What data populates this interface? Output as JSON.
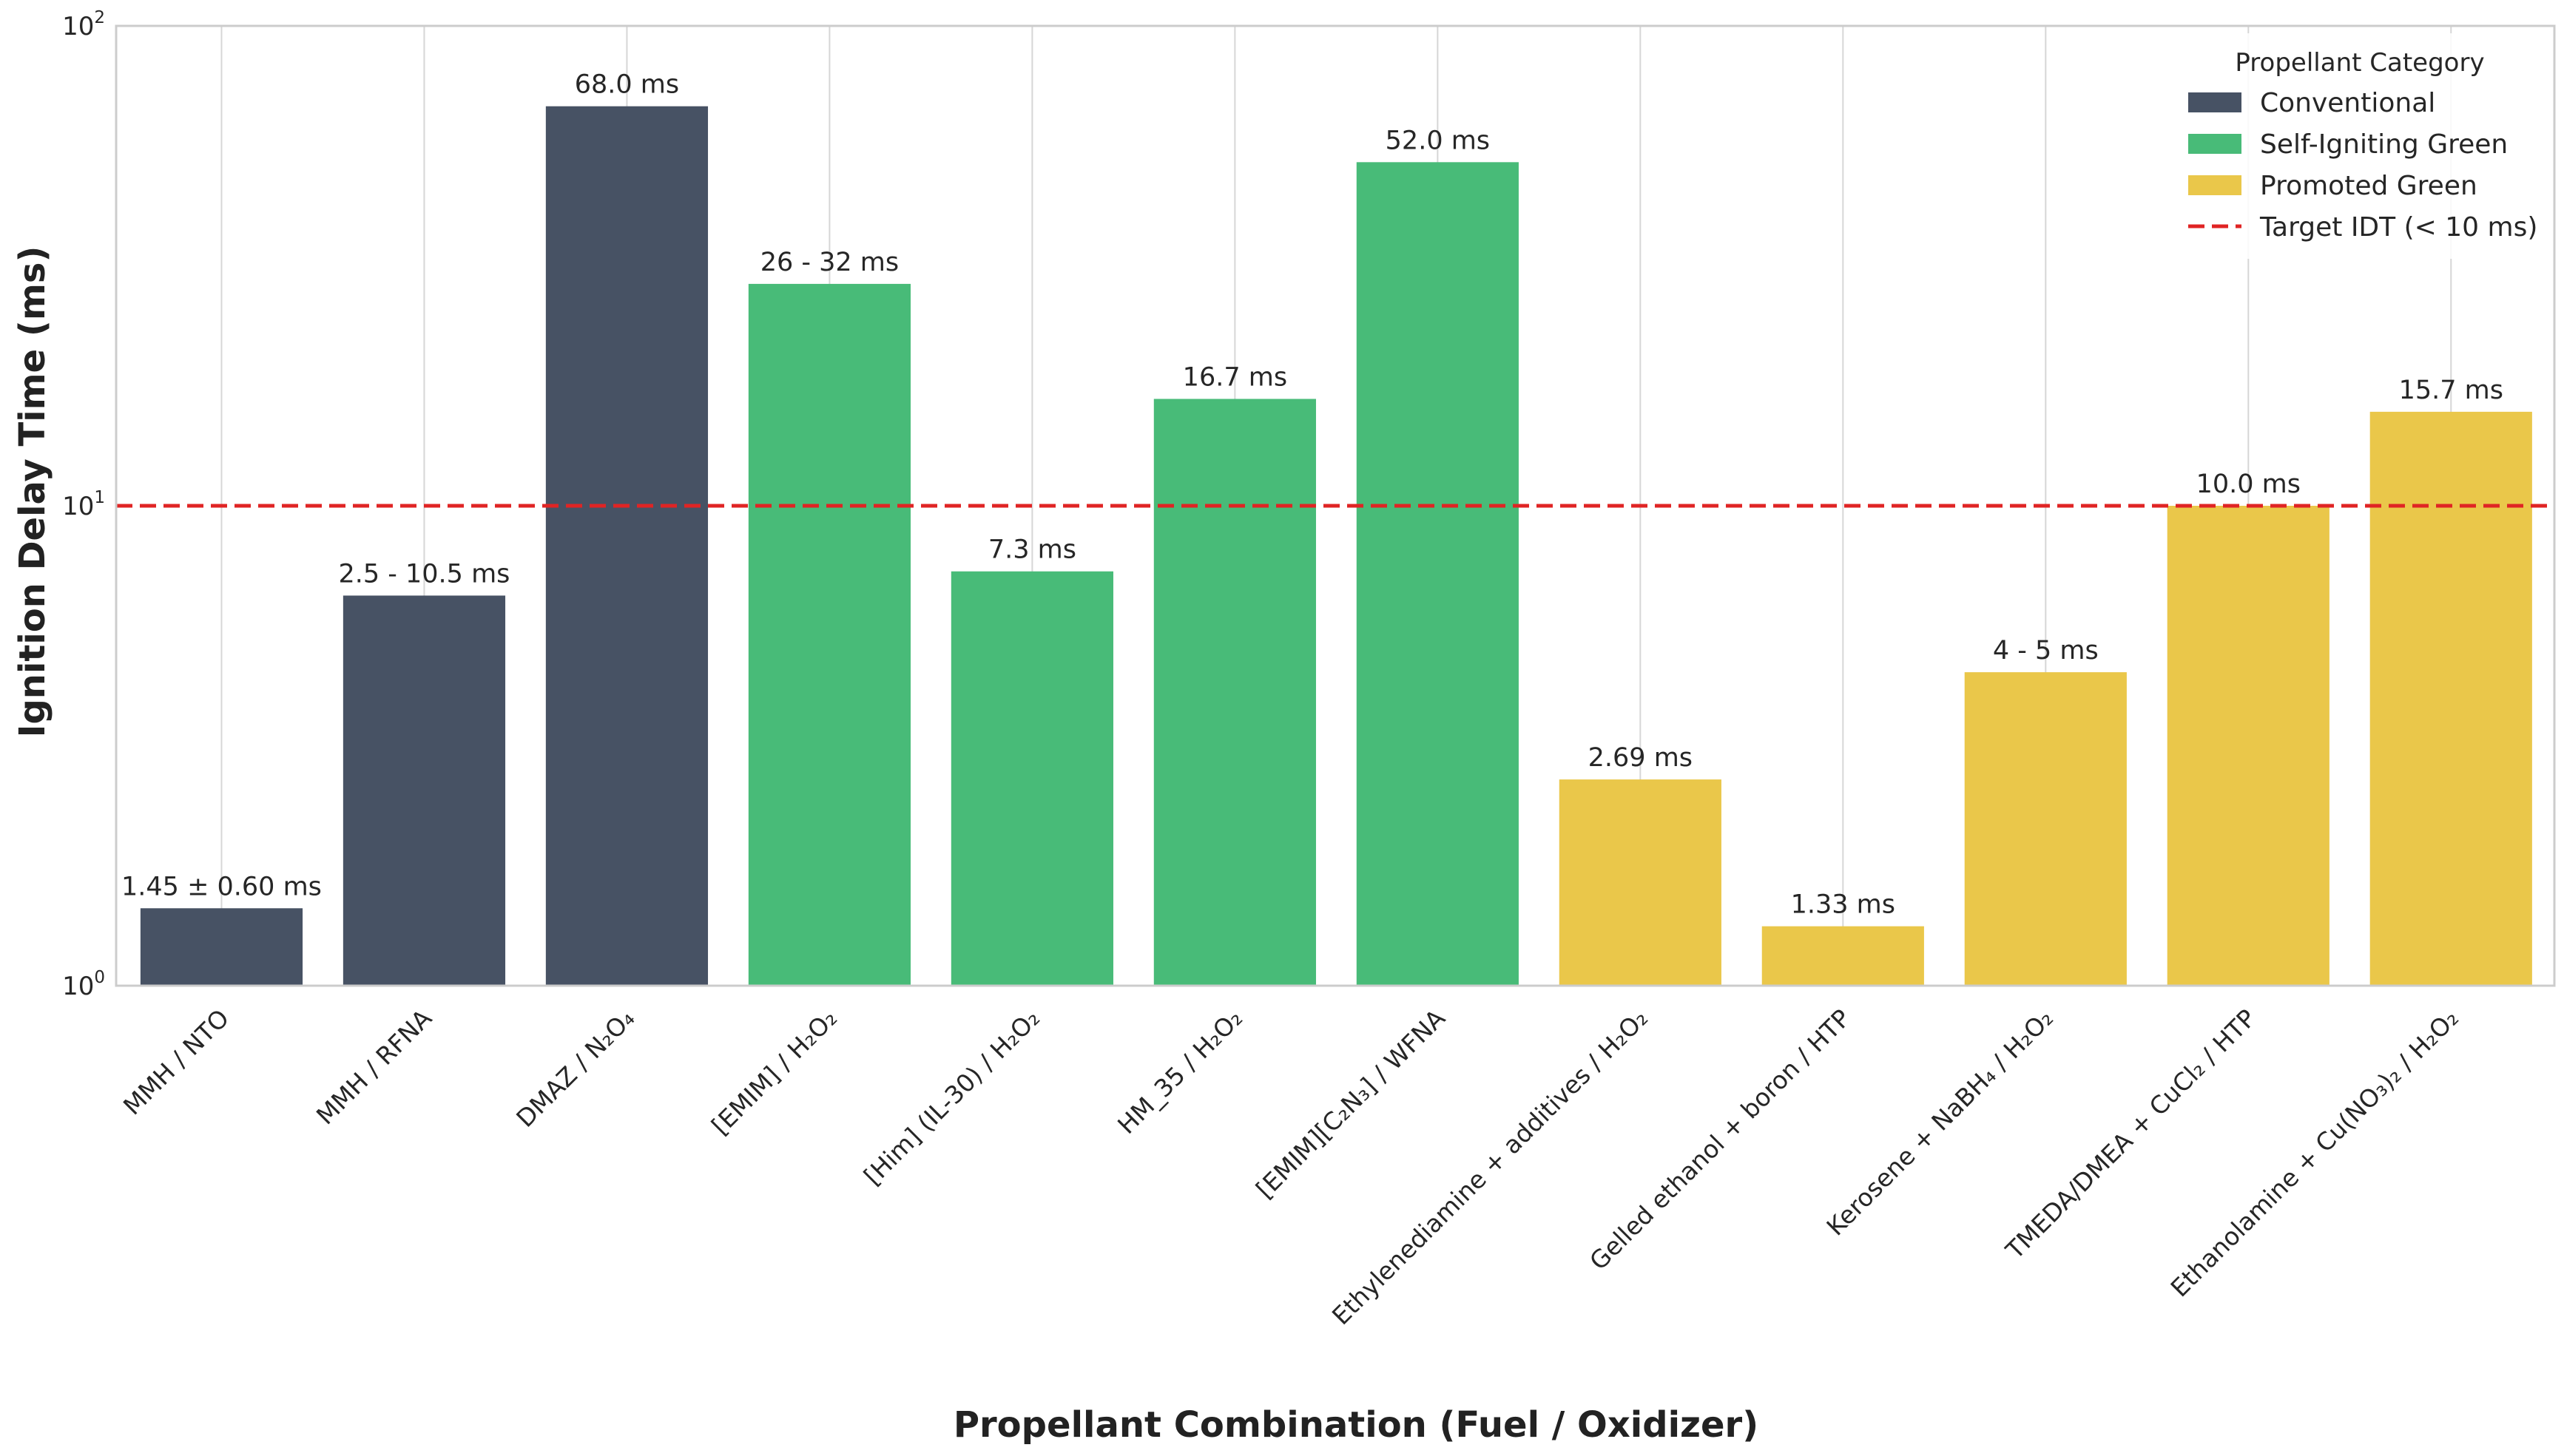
{
  "chart_data": {
    "type": "bar",
    "title": "",
    "xlabel": "Propellant Combination (Fuel / Oxidizer)",
    "ylabel": "Ignition Delay Time (ms)",
    "yscale": "log",
    "ylim": [
      1,
      100
    ],
    "yticks": [
      {
        "value": 1,
        "base": "10",
        "exp": "0"
      },
      {
        "value": 10,
        "base": "10",
        "exp": "1"
      },
      {
        "value": 100,
        "base": "10",
        "exp": "2"
      }
    ],
    "grid": true,
    "categories": [
      "MMH / NTO",
      "MMH / RFNA",
      "DMAZ / N₂O₄",
      "[EMIM] / H₂O₂",
      "[Him] (IL-30) / H₂O₂",
      "HM_35 / H₂O₂",
      "[EMIM][C₂N₃] / WFNA",
      "Ethylenediamine + additives / H₂O₂",
      "Gelled ethanol + boron / HTP",
      "Kerosene + NaBH₄ / H₂O₂",
      "TMEDA/DMEA + CuCl₂ / HTP",
      "Ethanolamine + Cu(NO₃)₂ / H₂O₂"
    ],
    "values": [
      1.45,
      6.5,
      68.0,
      29.0,
      7.3,
      16.7,
      52.0,
      2.69,
      1.33,
      4.5,
      10.0,
      15.7
    ],
    "value_labels": [
      "1.45 ± 0.60 ms",
      "2.5 - 10.5 ms",
      "68.0 ms",
      "26 - 32 ms",
      "7.3 ms",
      "16.7 ms",
      "52.0 ms",
      "2.69 ms",
      "1.33 ms",
      "4 - 5 ms",
      "10.0 ms",
      "15.7 ms"
    ],
    "bar_category": [
      "Conventional",
      "Conventional",
      "Conventional",
      "Self-Igniting Green",
      "Self-Igniting Green",
      "Self-Igniting Green",
      "Self-Igniting Green",
      "Promoted Green",
      "Promoted Green",
      "Promoted Green",
      "Promoted Green",
      "Promoted Green"
    ],
    "category_colors": {
      "Conventional": "#475264",
      "Self-Igniting Green": "#48bb78",
      "Promoted Green": "#eac74a"
    },
    "reference_line": {
      "value": 10,
      "label": "Target IDT (< 10 ms)",
      "color": "#e02424",
      "style": "dashed"
    },
    "legend": {
      "title": "Propellant Category",
      "position": "top-right",
      "entries": [
        {
          "label": "Conventional",
          "color": "#475264",
          "kind": "patch"
        },
        {
          "label": "Self-Igniting Green",
          "color": "#48bb78",
          "kind": "patch"
        },
        {
          "label": "Promoted Green",
          "color": "#eac74a",
          "kind": "patch"
        },
        {
          "label": "Target IDT (< 10 ms)",
          "color": "#e02424",
          "kind": "dashed-line"
        }
      ]
    }
  }
}
